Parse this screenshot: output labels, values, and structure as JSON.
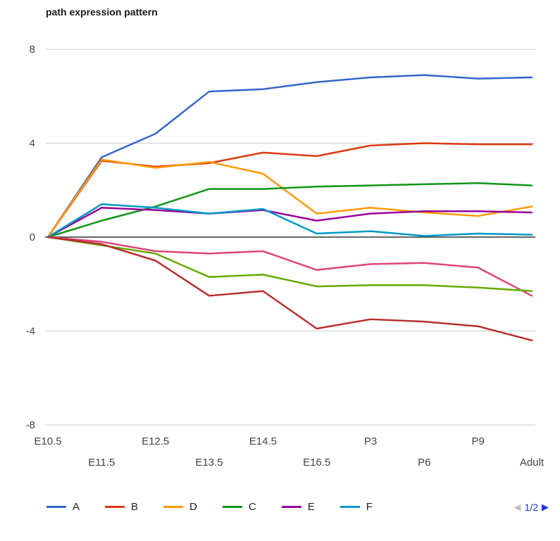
{
  "chart_data": {
    "type": "line",
    "title": "path expression pattern",
    "x_categories": [
      "E10.5",
      "E11.5",
      "E12.5",
      "E13.5",
      "E14.5",
      "E16.5",
      "P3",
      "P6",
      "P9",
      "Adult"
    ],
    "y_ticks": [
      8,
      4,
      0,
      -4,
      -8
    ],
    "ylim": [
      -8,
      8
    ],
    "grid": "horizontal-only",
    "legend_position": "bottom",
    "series": [
      {
        "name": "A",
        "color": "#3366cc",
        "in_legend": true,
        "values": [
          0,
          3.4,
          4.4,
          6.2,
          6.3,
          6.6,
          6.8,
          6.9,
          6.75,
          6.8
        ]
      },
      {
        "name": "B",
        "color": "#dc3912",
        "in_legend": true,
        "values": [
          0,
          3.25,
          3.0,
          3.15,
          3.6,
          3.45,
          3.9,
          4.0,
          3.95,
          3.95
        ]
      },
      {
        "name": "D",
        "color": "#ff9900",
        "in_legend": true,
        "values": [
          0,
          3.3,
          2.95,
          3.2,
          2.7,
          1.0,
          1.25,
          1.05,
          0.9,
          1.3
        ]
      },
      {
        "name": "C",
        "color": "#109618",
        "in_legend": true,
        "values": [
          0,
          0.7,
          1.3,
          2.05,
          2.05,
          2.15,
          2.2,
          2.25,
          2.3,
          2.2
        ]
      },
      {
        "name": "E",
        "color": "#990099",
        "in_legend": true,
        "values": [
          0,
          1.25,
          1.15,
          1.0,
          1.15,
          0.7,
          1.0,
          1.1,
          1.1,
          1.05
        ]
      },
      {
        "name": "F",
        "color": "#0099c6",
        "in_legend": true,
        "values": [
          0,
          1.4,
          1.25,
          1.0,
          1.2,
          0.15,
          0.25,
          0.05,
          0.15,
          0.1
        ]
      },
      {
        "name": "",
        "color": "#dd4477",
        "in_legend": false,
        "values": [
          0,
          -0.2,
          -0.6,
          -0.7,
          -0.6,
          -1.4,
          -1.15,
          -1.1,
          -1.3,
          -2.5
        ]
      },
      {
        "name": "",
        "color": "#66aa00",
        "in_legend": false,
        "values": [
          0,
          -0.35,
          -0.7,
          -1.7,
          -1.6,
          -2.1,
          -2.05,
          -2.05,
          -2.15,
          -2.3
        ]
      },
      {
        "name": "",
        "color": "#b82e2e",
        "in_legend": false,
        "values": [
          0,
          -0.3,
          -1.0,
          -2.5,
          -2.3,
          -3.9,
          -3.5,
          -3.6,
          -3.8,
          -4.4
        ]
      }
    ]
  },
  "legend": {
    "prev_icon_glyph": "◀",
    "page_label": "1/2",
    "next_icon_glyph": "▶"
  }
}
